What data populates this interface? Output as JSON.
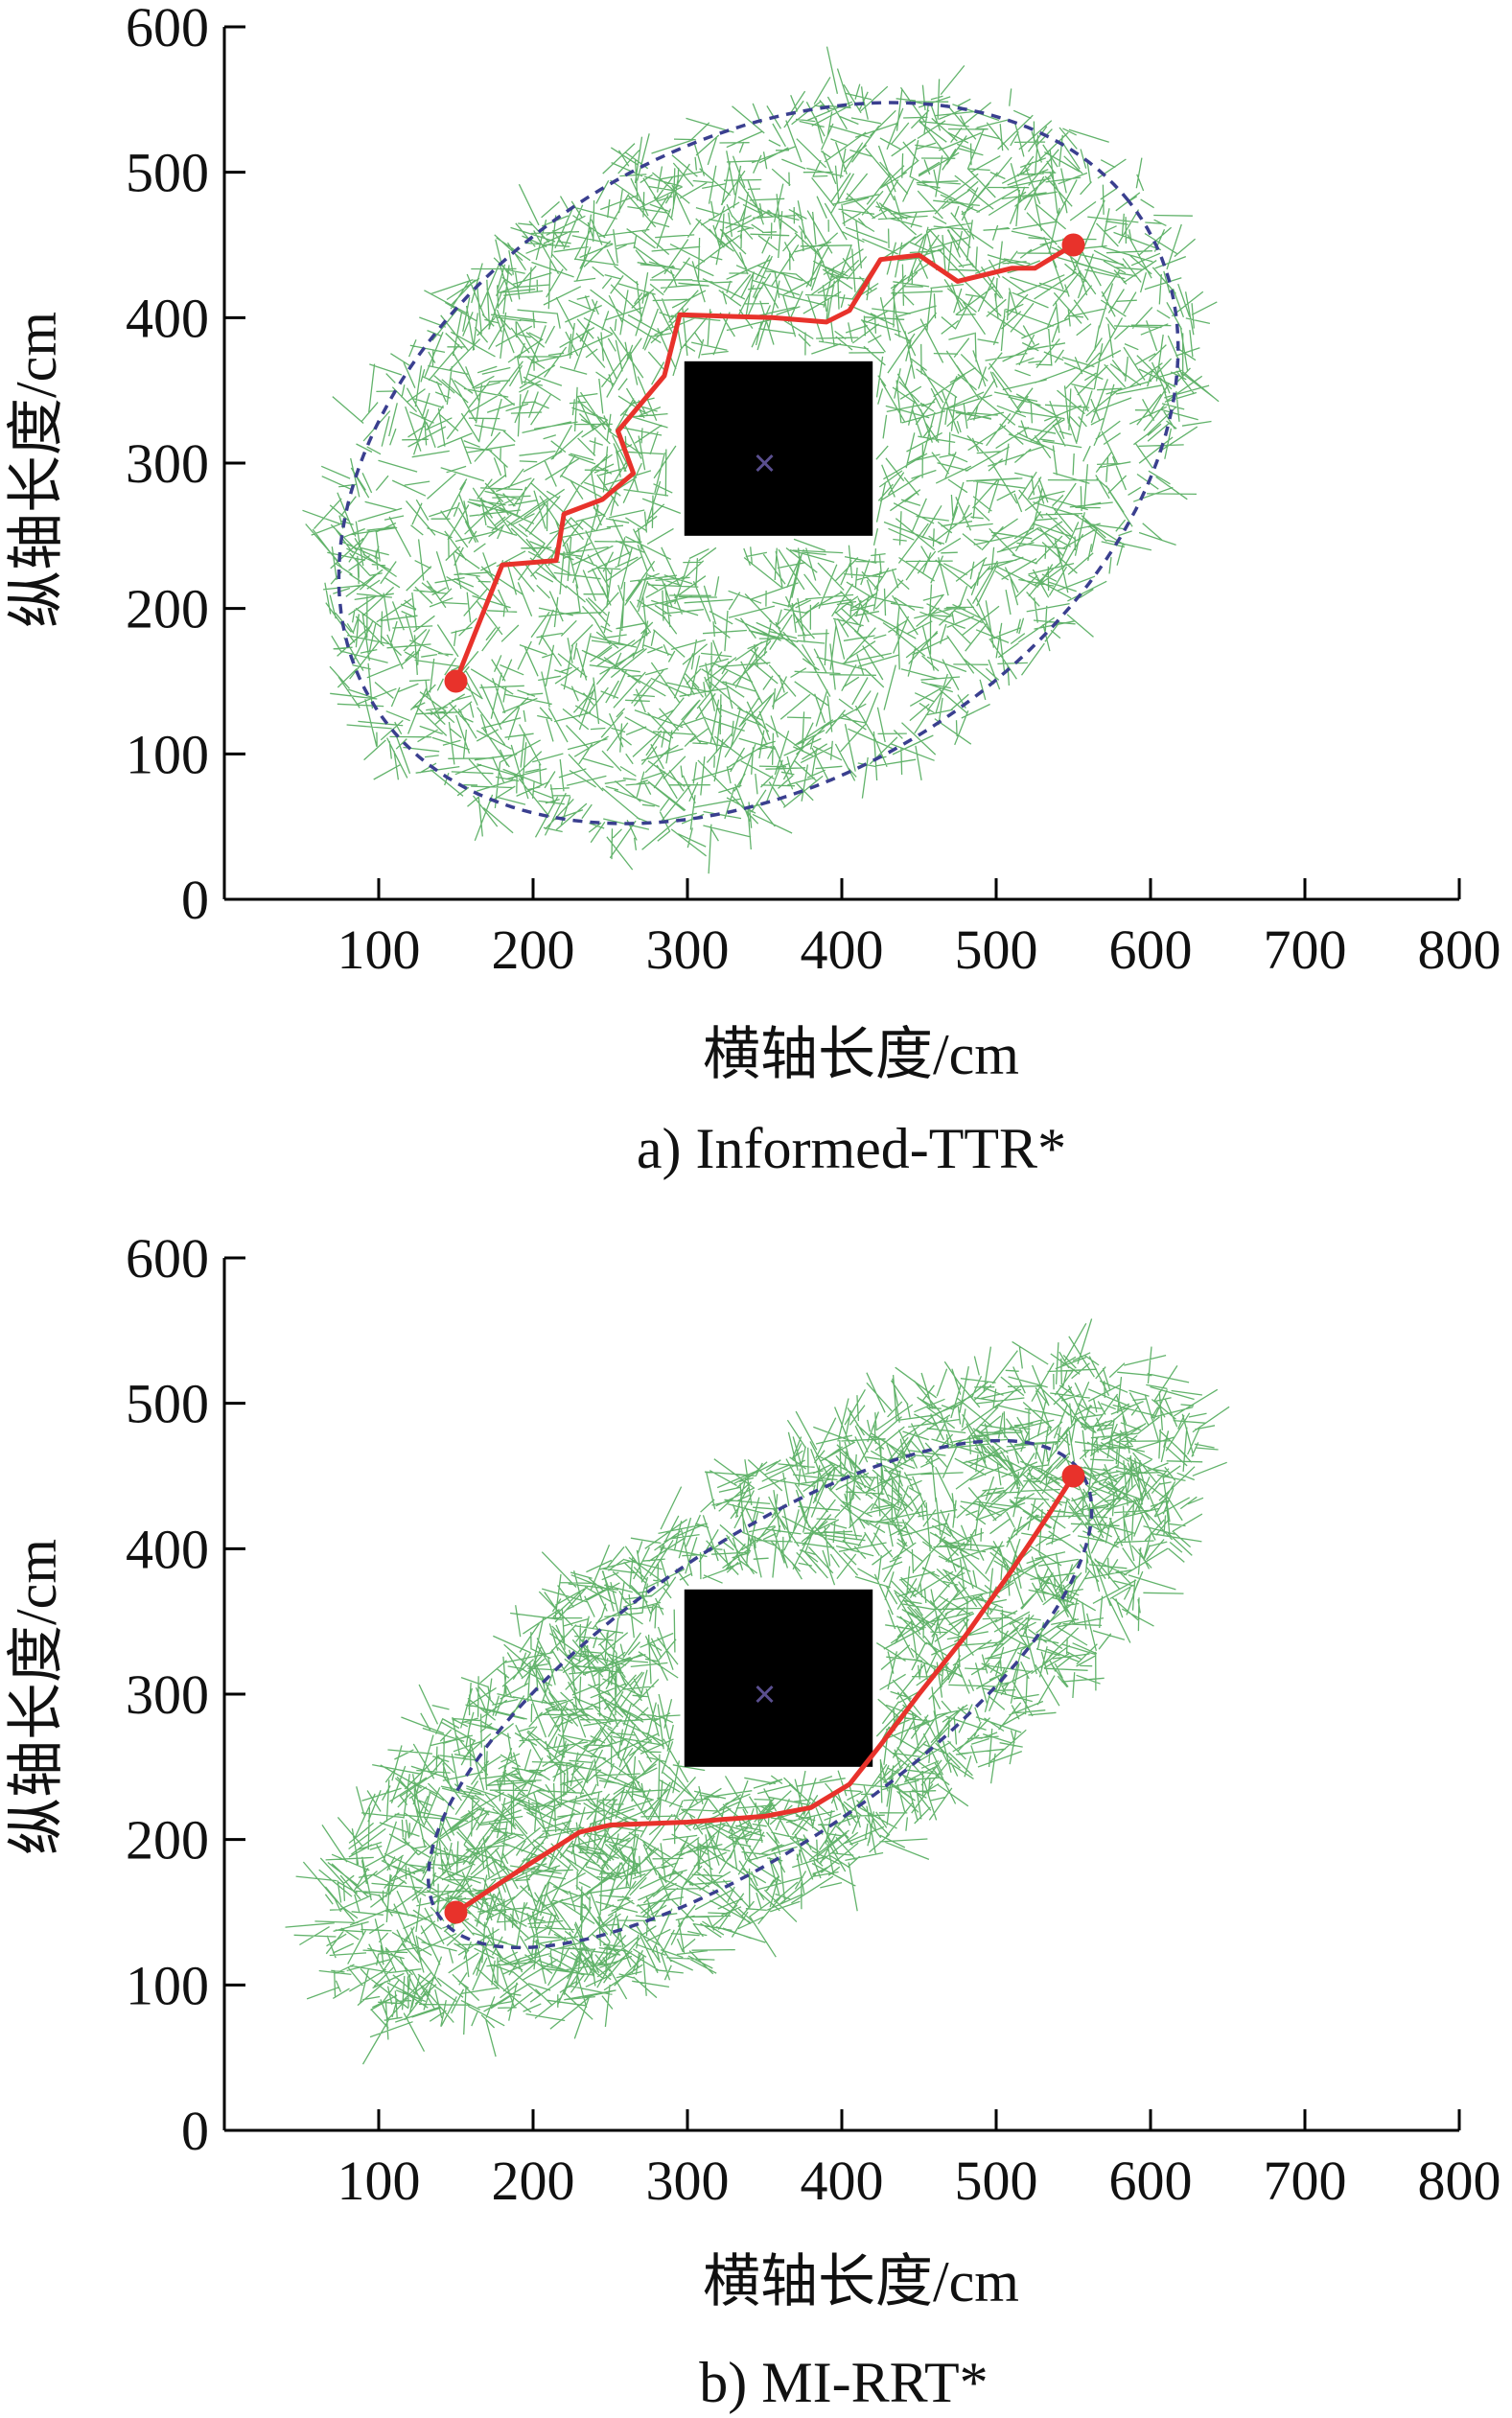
{
  "figure": {
    "captions": [
      "a) Informed-TTR*",
      "b) MI-RRT*"
    ]
  },
  "colors": {
    "tree": "#2e9a3a",
    "path": "#e8322b",
    "ellipse": "#3a3f8f",
    "obstacle": "#000000",
    "marker": "#5a4f8f",
    "axis": "#000000"
  },
  "chart_data": [
    {
      "type": "scatter",
      "title": "",
      "caption": "a) Informed-TTR*",
      "xlabel": "横轴长度/cm",
      "ylabel": "纵轴长度/cm",
      "xlim": [
        0,
        800
      ],
      "ylim": [
        0,
        600
      ],
      "xticks": [
        100,
        200,
        300,
        400,
        500,
        600,
        700,
        800
      ],
      "yticks": [
        0,
        100,
        200,
        300,
        400,
        500,
        600
      ],
      "grid": false,
      "start": [
        150,
        150
      ],
      "goal": [
        550,
        450
      ],
      "obstacle": {
        "x": [
          298,
          420
        ],
        "y": [
          250,
          370
        ]
      },
      "obstacle_center": [
        350,
        300
      ],
      "ellipse": {
        "center": [
          346,
          300
        ],
        "semi_major": 300,
        "semi_minor": 213,
        "angle_deg": 36.9
      },
      "path": [
        [
          150,
          150
        ],
        [
          180,
          230
        ],
        [
          215,
          233
        ],
        [
          220,
          265
        ],
        [
          245,
          275
        ],
        [
          265,
          293
        ],
        [
          255,
          322
        ],
        [
          285,
          360
        ],
        [
          295,
          402
        ],
        [
          355,
          400
        ],
        [
          390,
          397
        ],
        [
          405,
          405
        ],
        [
          425,
          440
        ],
        [
          450,
          443
        ],
        [
          475,
          425
        ],
        [
          510,
          434
        ],
        [
          525,
          434
        ],
        [
          550,
          450
        ]
      ]
    },
    {
      "type": "scatter",
      "title": "",
      "caption": "b) MI-RRT*",
      "xlabel": "横轴长度/cm",
      "ylabel": "纵轴长度/cm",
      "xlim": [
        0,
        800
      ],
      "ylim": [
        0,
        600
      ],
      "xticks": [
        100,
        200,
        300,
        400,
        500,
        600,
        700,
        800
      ],
      "yticks": [
        0,
        100,
        200,
        300,
        400,
        500,
        600
      ],
      "grid": false,
      "start": [
        150,
        150
      ],
      "goal": [
        550,
        450
      ],
      "obstacle": {
        "x": [
          298,
          420
        ],
        "y": [
          250,
          372
        ]
      },
      "obstacle_center": [
        350,
        300
      ],
      "ellipse": {
        "center": [
          347,
          300
        ],
        "semi_major": 258,
        "semi_minor": 100,
        "angle_deg": 36.9
      },
      "path": [
        [
          150,
          150
        ],
        [
          190,
          178
        ],
        [
          230,
          205
        ],
        [
          250,
          210
        ],
        [
          300,
          212
        ],
        [
          350,
          216
        ],
        [
          380,
          222
        ],
        [
          405,
          238
        ],
        [
          425,
          265
        ],
        [
          450,
          300
        ],
        [
          480,
          340
        ],
        [
          510,
          385
        ],
        [
          535,
          425
        ],
        [
          550,
          450
        ]
      ]
    }
  ]
}
